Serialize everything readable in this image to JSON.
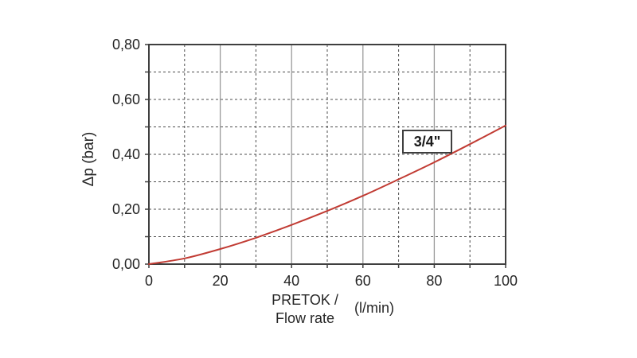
{
  "chart_data": {
    "type": "line",
    "title": "",
    "xlabel_lines": [
      "PRETOK /",
      "Flow rate"
    ],
    "x_unit": "(l/min)",
    "ylabel": "Δp (bar)",
    "xlim": [
      0,
      100
    ],
    "ylim": [
      0,
      0.8
    ],
    "grid_on": true,
    "legend_position": "none",
    "x_ticks": [
      {
        "v": 0,
        "label": "0"
      },
      {
        "v": 20,
        "label": "20"
      },
      {
        "v": 40,
        "label": "40"
      },
      {
        "v": 60,
        "label": "60"
      },
      {
        "v": 80,
        "label": "80"
      },
      {
        "v": 100,
        "label": "100"
      }
    ],
    "y_ticks": [
      {
        "v": 0.0,
        "label": "0,00"
      },
      {
        "v": 0.2,
        "label": "0,20"
      },
      {
        "v": 0.4,
        "label": "0,40"
      },
      {
        "v": 0.6,
        "label": "0,60"
      },
      {
        "v": 0.8,
        "label": "0,80"
      }
    ],
    "x_minor_ticks": [
      10,
      30,
      50,
      70,
      90
    ],
    "y_minor_ticks": [
      0.1,
      0.3,
      0.5,
      0.7
    ],
    "grid": {
      "y_dashed": [
        0.1,
        0.2,
        0.3,
        0.4,
        0.5,
        0.6,
        0.7
      ],
      "x_dashed": [
        10,
        30,
        50,
        70,
        90
      ],
      "x_solid": [
        20,
        40,
        60,
        80
      ]
    },
    "series": [
      {
        "name": "3/4\"",
        "color": "#c13b33",
        "x": [
          0,
          10,
          20,
          30,
          40,
          50,
          60,
          70,
          80,
          90,
          100
        ],
        "y": [
          0,
          0.021,
          0.055,
          0.096,
          0.143,
          0.194,
          0.249,
          0.309,
          0.371,
          0.437,
          0.505
        ]
      }
    ],
    "annotation": {
      "label": "3/4\""
    }
  },
  "colors": {
    "background": "#ffffff",
    "curve": "#c13b33",
    "frame": "#3f3f3f",
    "grid_dashed": "#4d4d4d",
    "grid_solid": "#9a9a9a",
    "tick": "#3f3f3f",
    "text": "#262626",
    "annotation_border": "#3f3f3f"
  }
}
